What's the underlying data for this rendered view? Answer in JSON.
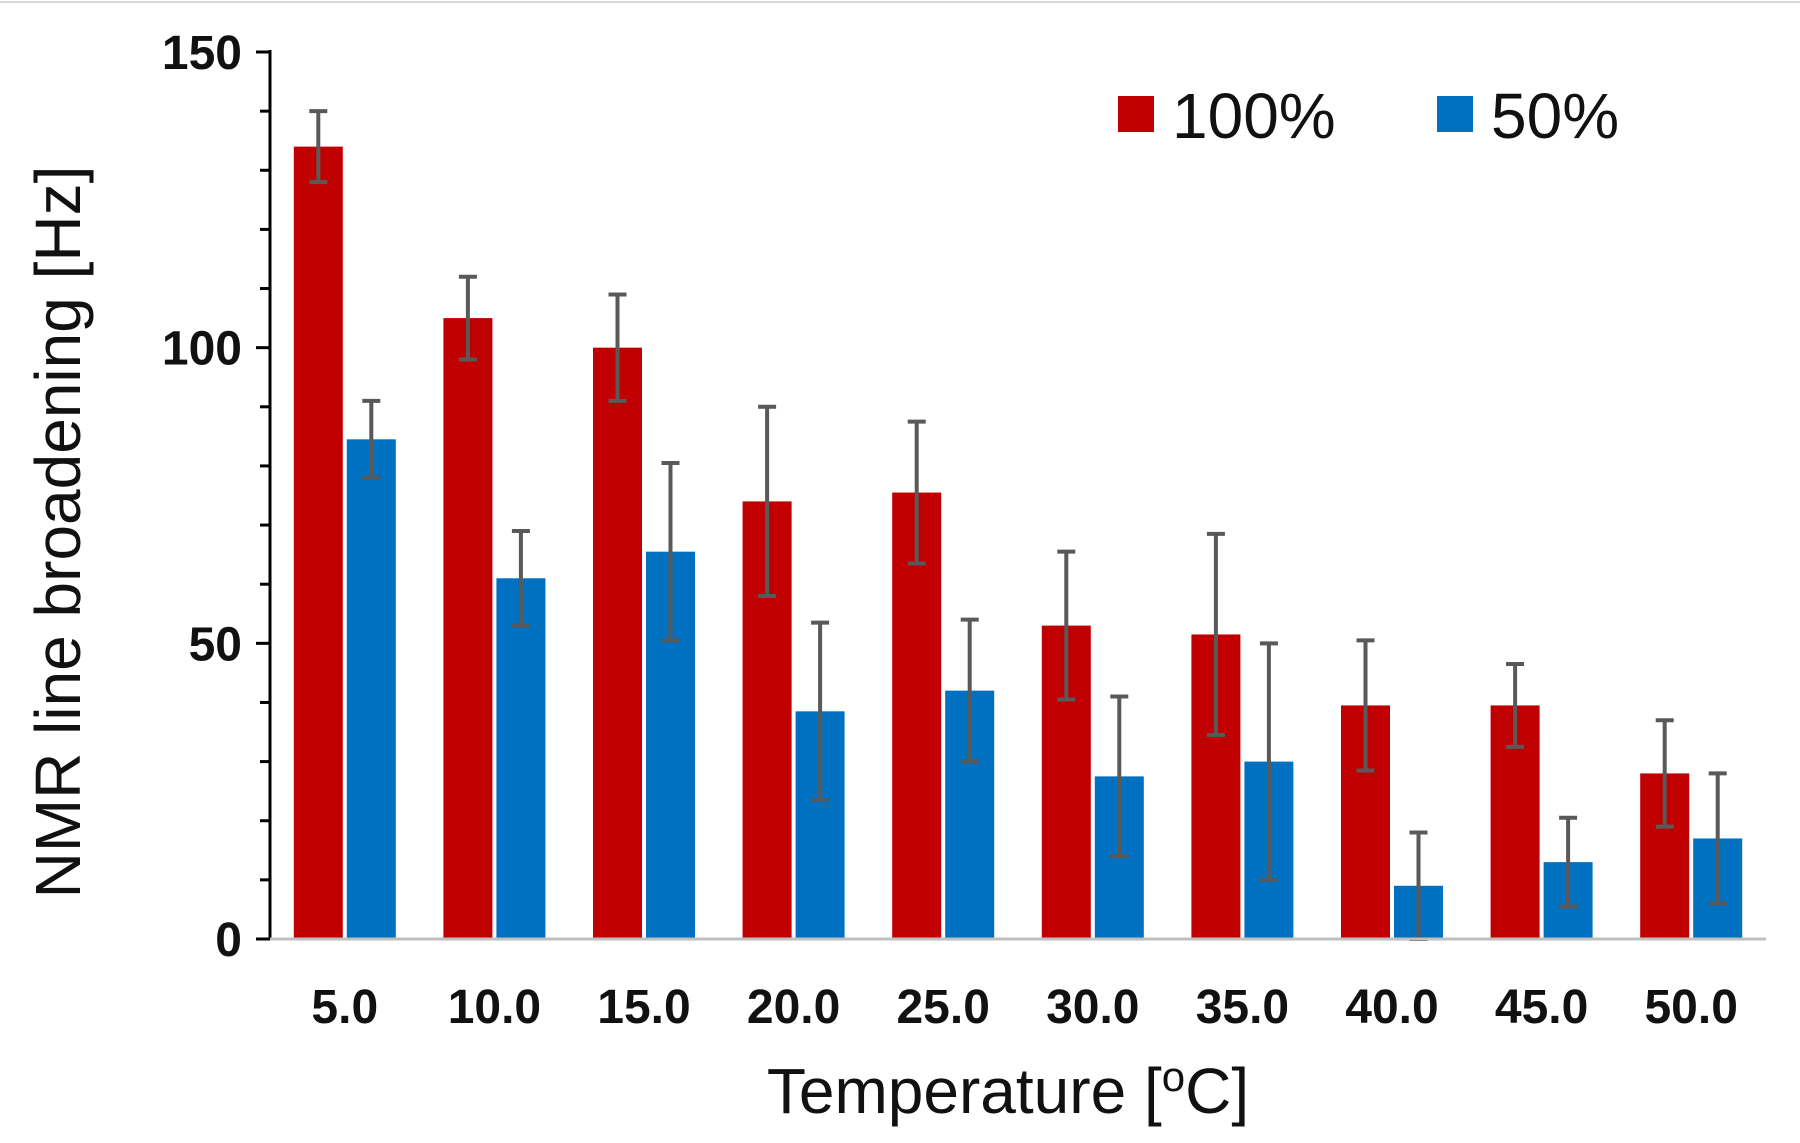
{
  "chart_data": {
    "type": "bar",
    "title": "",
    "xlabel_main": "Temperature [",
    "xlabel_sup": "o",
    "xlabel_end": "C]",
    "ylabel": "NMR line broadening [Hz]",
    "ylim": [
      0,
      150
    ],
    "yticks": [
      "0",
      "50",
      "100",
      "150"
    ],
    "ytick_values": [
      0,
      50,
      100,
      150
    ],
    "minor_tick_step": 10,
    "grid": false,
    "legend_position": "top-right",
    "categories": [
      "5.0",
      "10.0",
      "15.0",
      "20.0",
      "25.0",
      "30.0",
      "35.0",
      "40.0",
      "45.0",
      "50.0"
    ],
    "series": [
      {
        "name": "100%",
        "color": "#c00000",
        "values": [
          134,
          105,
          100,
          74,
          75.5,
          53,
          51.5,
          39.5,
          39.5,
          28
        ],
        "errors": [
          6,
          7,
          9,
          16,
          12,
          12.5,
          17,
          11,
          7,
          9
        ]
      },
      {
        "name": "50%",
        "color": "#0070c0",
        "values": [
          84.5,
          61,
          65.5,
          38.5,
          42,
          27.5,
          30,
          9,
          13,
          17
        ],
        "errors": [
          6.5,
          8,
          15,
          15,
          12,
          13.5,
          20,
          9,
          7.5,
          11
        ]
      }
    ],
    "error_bar_color": "#595959",
    "axis_color": "#000000"
  }
}
